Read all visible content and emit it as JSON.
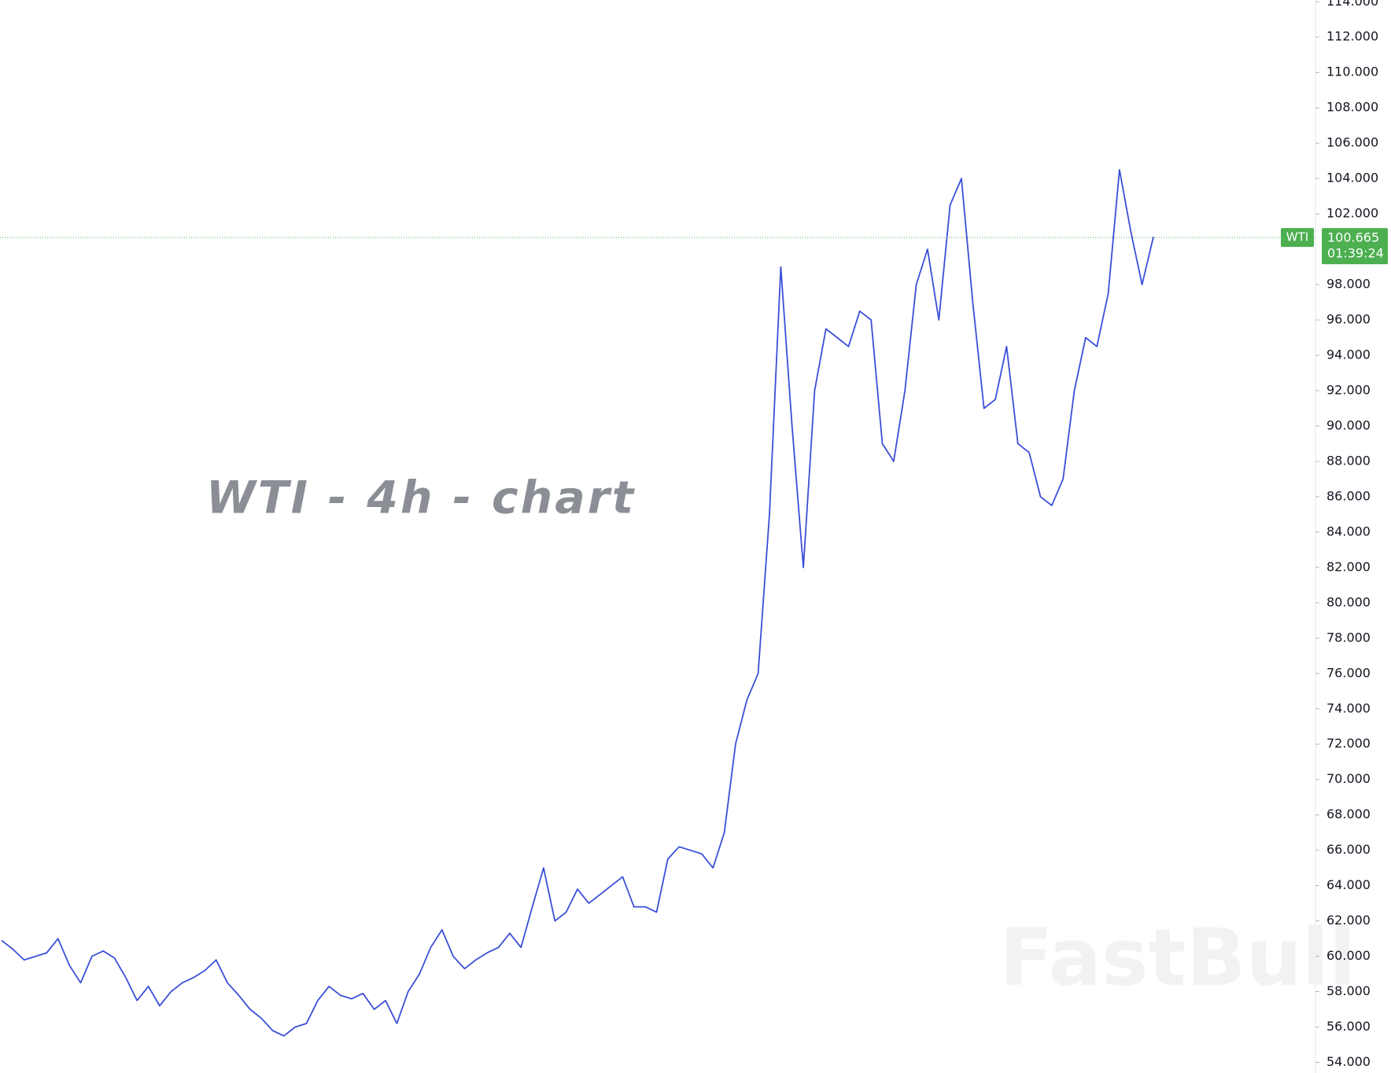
{
  "chart_data": {
    "type": "line",
    "title": "WTI - 4h - chart",
    "watermark": "FastBull",
    "symbol": "WTI",
    "last_price": {
      "value": 100.665,
      "label": "100.665"
    },
    "countdown": "01:39:24",
    "ylim": [
      53.4,
      114.1
    ],
    "yticks": [
      {
        "value": 54,
        "label": "54.000"
      },
      {
        "value": 56,
        "label": "56.000"
      },
      {
        "value": 58,
        "label": "58.000"
      },
      {
        "value": 60,
        "label": "60.000"
      },
      {
        "value": 62,
        "label": "62.000"
      },
      {
        "value": 64,
        "label": "64.000"
      },
      {
        "value": 66,
        "label": "66.000"
      },
      {
        "value": 68,
        "label": "68.000"
      },
      {
        "value": 70,
        "label": "70.000"
      },
      {
        "value": 72,
        "label": "72.000"
      },
      {
        "value": 74,
        "label": "74.000"
      },
      {
        "value": 76,
        "label": "76.000"
      },
      {
        "value": 78,
        "label": "78.000"
      },
      {
        "value": 80,
        "label": "80.000"
      },
      {
        "value": 82,
        "label": "82.000"
      },
      {
        "value": 84,
        "label": "84.000"
      },
      {
        "value": 86,
        "label": "86.000"
      },
      {
        "value": 88,
        "label": "88.000"
      },
      {
        "value": 90,
        "label": "90.000"
      },
      {
        "value": 92,
        "label": "92.000"
      },
      {
        "value": 94,
        "label": "94.000"
      },
      {
        "value": 96,
        "label": "96.000"
      },
      {
        "value": 98,
        "label": "98.000"
      },
      {
        "value": 102,
        "label": "102.000"
      },
      {
        "value": 104,
        "label": "104.000"
      },
      {
        "value": 106,
        "label": "106.000"
      },
      {
        "value": 108,
        "label": "108.000"
      },
      {
        "value": 110,
        "label": "110.000"
      },
      {
        "value": 112,
        "label": "112.000"
      },
      {
        "value": 114,
        "label": "114.000"
      }
    ],
    "series": [
      {
        "color": "#3b4fd8",
        "values": [
          60.9,
          60.4,
          59.8,
          60.0,
          60.2,
          61.0,
          59.5,
          58.5,
          60.0,
          60.3,
          59.9,
          58.8,
          57.5,
          58.3,
          57.2,
          58.0,
          58.5,
          58.8,
          59.2,
          59.8,
          58.5,
          57.8,
          57.0,
          56.5,
          55.8,
          55.5,
          56.0,
          56.2,
          57.5,
          58.3,
          57.8,
          57.6,
          57.9,
          57.0,
          57.5,
          56.2,
          58.0,
          59.0,
          60.5,
          61.5,
          60.0,
          59.3,
          59.8,
          60.2,
          60.5,
          61.3,
          60.5,
          62.8,
          65.0,
          62.0,
          62.5,
          63.8,
          63.0,
          63.5,
          64.0,
          64.5,
          62.8,
          62.8,
          62.5,
          65.5,
          66.2,
          66.0,
          65.8,
          65.0,
          67.0,
          72.0,
          74.5,
          76.0,
          85.0,
          99.0,
          90.0,
          82.0,
          92.0,
          95.5,
          95.0,
          94.5,
          96.5,
          96.0,
          89.0,
          88.0,
          92.0,
          98.0,
          100.0,
          96.0,
          102.5,
          104.0,
          97.0,
          91.0,
          91.5,
          94.5,
          89.0,
          88.5,
          86.0,
          85.5,
          87.0,
          92.0,
          95.0,
          94.5,
          97.5,
          104.5,
          101.0,
          98.0,
          100.7
        ]
      }
    ]
  }
}
